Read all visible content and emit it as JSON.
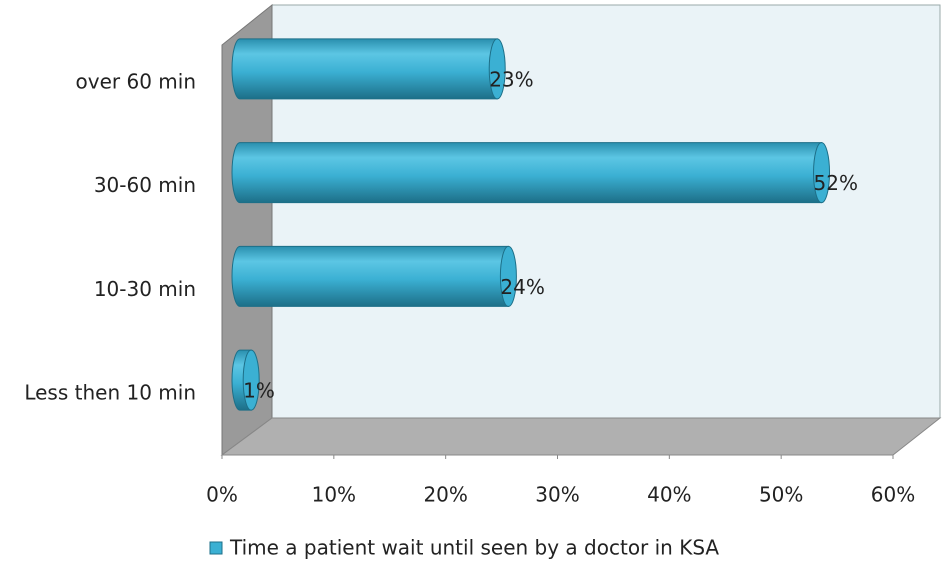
{
  "chart_data": {
    "type": "bar",
    "orientation": "horizontal",
    "categories": [
      "over 60 min",
      "30-60 min",
      "10-30 min",
      "Less then 10 min"
    ],
    "series": [
      {
        "name": "Time a patient wait until seen by a doctor in KSA",
        "color": "#3bb0d3",
        "values": [
          23,
          52,
          24,
          1
        ],
        "value_labels": [
          "23%",
          "52%",
          "24%",
          "1%"
        ]
      }
    ],
    "xlim": [
      0,
      60
    ],
    "xticks": [
      {
        "value": 0,
        "label": "0%"
      },
      {
        "value": 10,
        "label": "10%"
      },
      {
        "value": 20,
        "label": "20%"
      },
      {
        "value": 30,
        "label": "30%"
      },
      {
        "value": 40,
        "label": "40%"
      },
      {
        "value": 50,
        "label": "50%"
      },
      {
        "value": 60,
        "label": "60%"
      }
    ],
    "legend": "bottom"
  }
}
